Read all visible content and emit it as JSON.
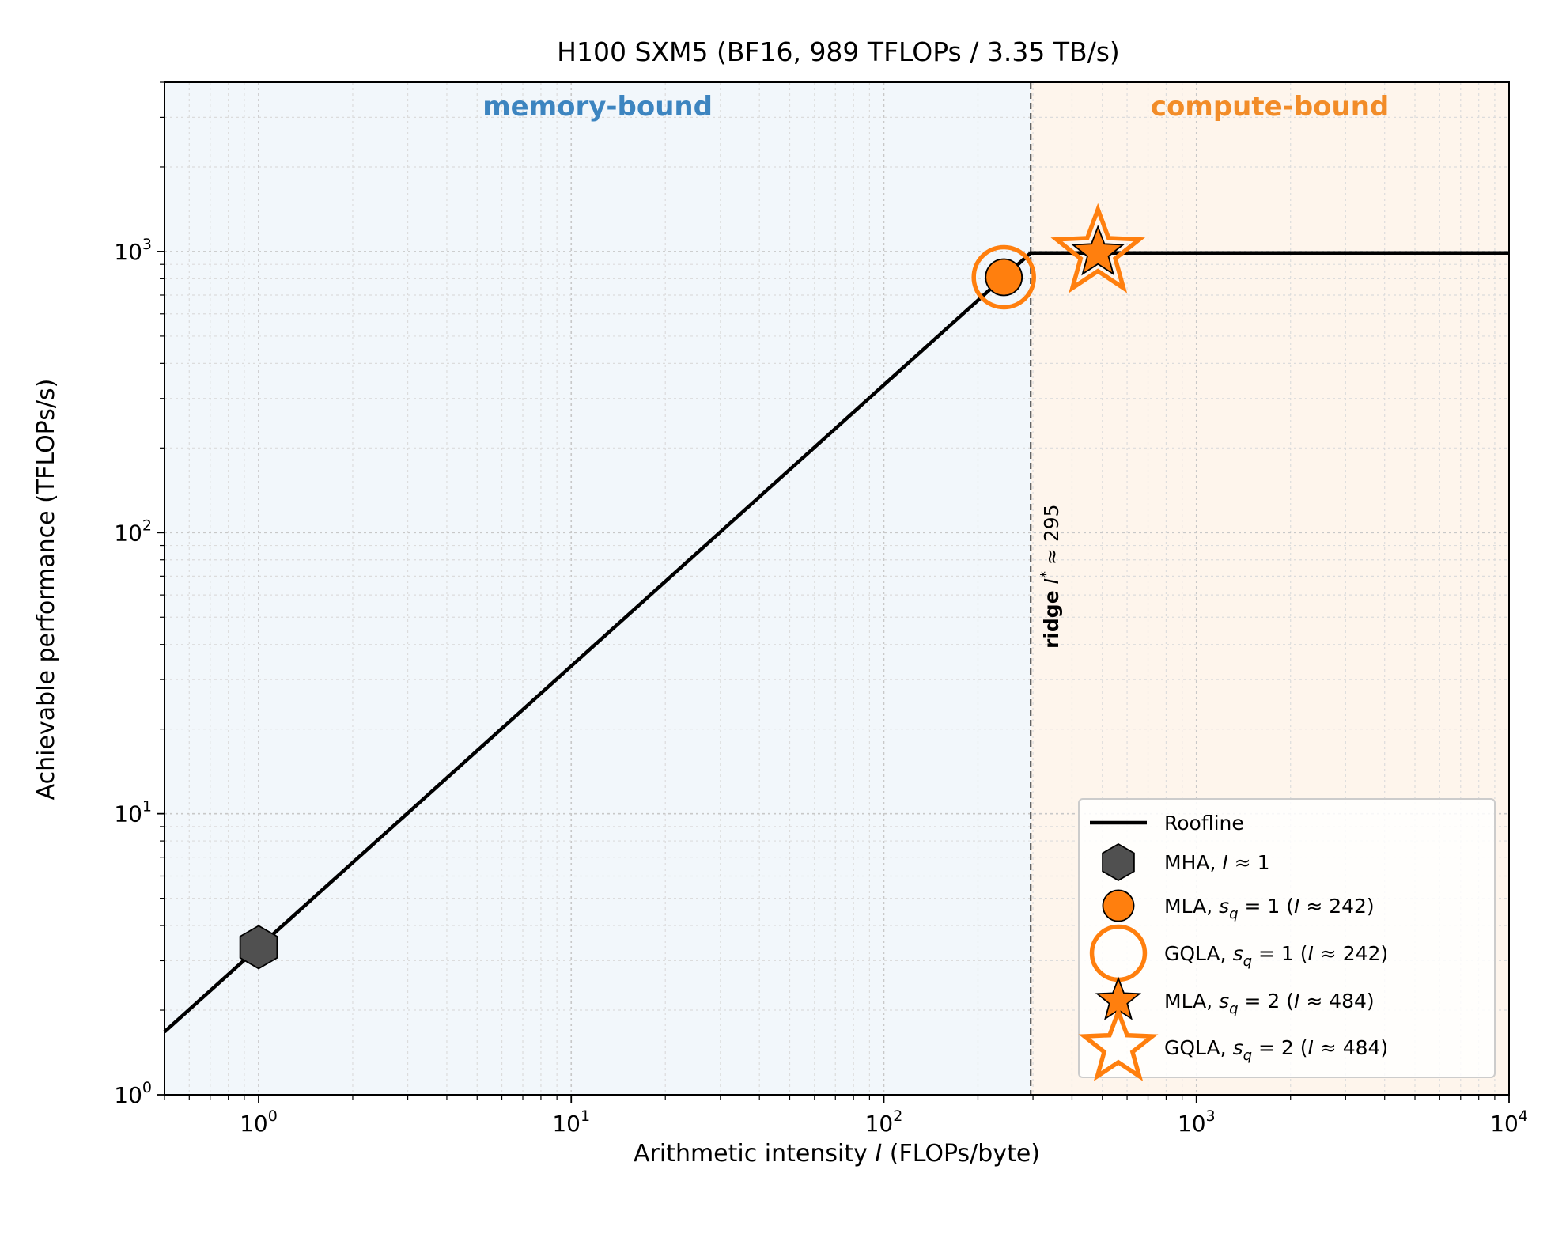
{
  "chart_data": {
    "type": "line",
    "title": "H100 SXM5 (BF16, 989 TFLOPs / 3.35 TB/s)",
    "xlabel_prefix": "Arithmetic intensity ",
    "xlabel_var": "I",
    "xlabel_suffix": " (FLOPs/byte)",
    "ylabel": "Achievable performance (TFLOPs/s)",
    "xscale": "log",
    "yscale": "log",
    "xlim": [
      0.5,
      10000
    ],
    "ylim": [
      1,
      4000
    ],
    "xticks": [
      1,
      10,
      100,
      1000,
      10000
    ],
    "xtick_labels": [
      {
        "base": "10",
        "exp": "0"
      },
      {
        "base": "10",
        "exp": "1"
      },
      {
        "base": "10",
        "exp": "2"
      },
      {
        "base": "10",
        "exp": "3"
      },
      {
        "base": "10",
        "exp": "4"
      }
    ],
    "yticks": [
      1,
      10,
      100,
      1000
    ],
    "ytick_labels": [
      {
        "base": "10",
        "exp": "0"
      },
      {
        "base": "10",
        "exp": "1"
      },
      {
        "base": "10",
        "exp": "2"
      },
      {
        "base": "10",
        "exp": "3"
      }
    ],
    "grid": true,
    "peak_tflops": 989,
    "bandwidth_tbs": 3.35,
    "ridge": 295,
    "ridge_label": {
      "bold": "ridge",
      "var": "I",
      "sup": "*",
      "rest": " ≈ 295"
    },
    "regions": [
      {
        "label": "memory-bound",
        "color": "#3d85c0",
        "fill": "#f2f7fb"
      },
      {
        "label": "compute-bound",
        "color": "#f28c28",
        "fill": "#fef5ec"
      }
    ],
    "series": [
      {
        "name": "Roofline",
        "kind": "line",
        "color": "#000000",
        "x": [
          0.5,
          295,
          10000
        ],
        "y": [
          1.675,
          989,
          989
        ]
      },
      {
        "kind": "marker",
        "marker": "hexagon",
        "fill": "#505050",
        "stroke": "#000000",
        "x": 1,
        "y": 3.35,
        "legend": [
          {
            "t": "MHA, "
          },
          {
            "t": "I",
            "i": true
          },
          {
            "t": " ≈ 1"
          }
        ]
      },
      {
        "kind": "marker",
        "marker": "circle",
        "fill": "#ff7f0e",
        "stroke": "#000000",
        "x": 242,
        "y": 810,
        "legend": [
          {
            "t": "MLA,  "
          },
          {
            "t": "s",
            "i": true
          },
          {
            "t": "q",
            "sub": true
          },
          {
            "t": " = 1  ("
          },
          {
            "t": "I",
            "i": true
          },
          {
            "t": " ≈ 242)"
          }
        ]
      },
      {
        "kind": "marker",
        "marker": "ring",
        "fill": "none",
        "stroke": "#ff7f0e",
        "x": 242,
        "y": 810,
        "legend": [
          {
            "t": "GQLA,  "
          },
          {
            "t": "s",
            "i": true
          },
          {
            "t": "q",
            "sub": true
          },
          {
            "t": " = 1  ("
          },
          {
            "t": "I",
            "i": true
          },
          {
            "t": " ≈ 242)"
          }
        ]
      },
      {
        "kind": "marker",
        "marker": "star",
        "fill": "#ff7f0e",
        "stroke": "#000000",
        "x": 484,
        "y": 989,
        "legend": [
          {
            "t": "MLA,  "
          },
          {
            "t": "s",
            "i": true
          },
          {
            "t": "q",
            "sub": true
          },
          {
            "t": " = 2  ("
          },
          {
            "t": "I",
            "i": true
          },
          {
            "t": " ≈ 484)"
          }
        ]
      },
      {
        "kind": "marker",
        "marker": "star-open",
        "fill": "none",
        "stroke": "#ff7f0e",
        "x": 484,
        "y": 989,
        "legend": [
          {
            "t": "GQLA,  "
          },
          {
            "t": "s",
            "i": true
          },
          {
            "t": "q",
            "sub": true
          },
          {
            "t": " = 2  ("
          },
          {
            "t": "I",
            "i": true
          },
          {
            "t": " ≈ 484)"
          }
        ]
      }
    ],
    "legend_position": "lower right"
  }
}
